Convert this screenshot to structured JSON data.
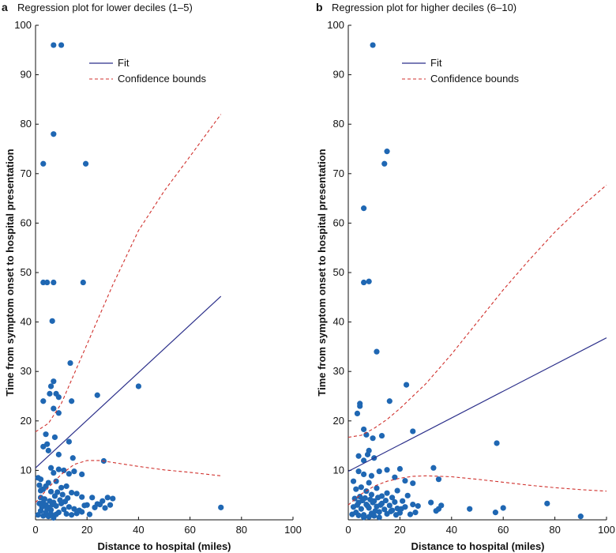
{
  "figure": {
    "colors": {
      "fit": "#2b2f8a",
      "bounds": "#d0312d",
      "points": "#1f67b3",
      "axis": "#111111"
    }
  },
  "chart_data": [
    {
      "panel_letter": "a",
      "title": "Regression plot for lower deciles (1–5)",
      "type": "scatter",
      "xlabel": "Distance to hospital (miles)",
      "ylabel": "Time from symptom onset to hospital presentation",
      "xlim": [
        0,
        100
      ],
      "ylim": [
        0,
        100
      ],
      "xticks": [
        0,
        20,
        40,
        60,
        80,
        100
      ],
      "yticks": [
        10,
        20,
        30,
        40,
        50,
        60,
        70,
        80,
        90,
        100
      ],
      "legend": {
        "position": "top-center",
        "entries": [
          "Fit",
          "Confidence bounds"
        ]
      },
      "fit": [
        [
          0,
          10.5
        ],
        [
          72,
          45.2
        ]
      ],
      "upper_bound": [
        [
          0,
          17.8
        ],
        [
          5,
          19.5
        ],
        [
          10,
          23.5
        ],
        [
          15,
          29.5
        ],
        [
          20,
          35.5
        ],
        [
          30,
          47.5
        ],
        [
          40,
          58.5
        ],
        [
          50,
          66.5
        ],
        [
          60,
          73.5
        ],
        [
          72,
          82
        ]
      ],
      "lower_bound": [
        [
          0,
          3.5
        ],
        [
          5,
          6.5
        ],
        [
          10,
          9.2
        ],
        [
          15,
          11.2
        ],
        [
          20,
          12
        ],
        [
          25,
          12
        ],
        [
          30,
          11.6
        ],
        [
          40,
          10.8
        ],
        [
          50,
          10.1
        ],
        [
          60,
          9.6
        ],
        [
          72,
          8.9
        ]
      ],
      "points": [
        [
          7,
          96
        ],
        [
          10,
          96
        ],
        [
          7,
          78
        ],
        [
          3,
          72
        ],
        [
          19.5,
          72
        ],
        [
          3,
          48
        ],
        [
          4.5,
          48
        ],
        [
          7,
          48
        ],
        [
          18.5,
          48
        ],
        [
          6.5,
          40.2
        ],
        [
          13.5,
          31.7
        ],
        [
          40,
          27
        ],
        [
          7,
          28
        ],
        [
          6,
          27
        ],
        [
          5.5,
          25.5
        ],
        [
          8,
          25.5
        ],
        [
          9,
          24.8
        ],
        [
          24,
          25.2
        ],
        [
          3,
          24
        ],
        [
          14,
          24
        ],
        [
          7,
          22.5
        ],
        [
          9,
          21.6
        ],
        [
          4,
          17.3
        ],
        [
          3,
          14.8
        ],
        [
          4.5,
          15.3
        ],
        [
          5,
          14
        ],
        [
          7.5,
          16.7
        ],
        [
          13,
          15.8
        ],
        [
          9,
          13.2
        ],
        [
          26.5,
          11.9
        ],
        [
          14.5,
          12.5
        ],
        [
          18,
          9.2
        ],
        [
          6,
          10.5
        ],
        [
          7,
          9.5
        ],
        [
          9,
          10.2
        ],
        [
          11,
          10
        ],
        [
          13,
          9.3
        ],
        [
          15,
          9.8
        ],
        [
          72,
          2.5
        ],
        [
          1,
          8.5
        ],
        [
          2,
          8.2
        ],
        [
          1.5,
          7
        ],
        [
          3,
          6.2
        ],
        [
          5,
          7.5
        ],
        [
          8,
          7.8
        ],
        [
          10,
          6.5
        ],
        [
          12,
          6.8
        ],
        [
          14,
          5.5
        ],
        [
          16,
          5.3
        ],
        [
          18,
          4.6
        ],
        [
          20,
          3
        ],
        [
          22,
          4.5
        ],
        [
          24,
          3.2
        ],
        [
          26,
          3.8
        ],
        [
          28,
          4.5
        ],
        [
          30,
          4.3
        ],
        [
          2,
          4.5
        ],
        [
          3,
          3.5
        ],
        [
          4,
          3
        ],
        [
          5,
          2.5
        ],
        [
          6,
          2
        ],
        [
          7,
          3.5
        ],
        [
          8,
          2.8
        ],
        [
          9,
          1.5
        ],
        [
          10,
          3.3
        ],
        [
          11,
          2.1
        ],
        [
          12,
          1.2
        ],
        [
          13,
          2.6
        ],
        [
          15,
          2.2
        ],
        [
          17,
          1.9
        ],
        [
          19,
          2.9
        ],
        [
          21,
          1.1
        ],
        [
          23,
          2.5
        ],
        [
          25,
          3.1
        ],
        [
          27,
          2.4
        ],
        [
          29,
          3
        ],
        [
          1,
          1
        ],
        [
          2,
          1.8
        ],
        [
          3,
          0.8
        ],
        [
          4,
          1.5
        ],
        [
          5,
          0.7
        ],
        [
          6,
          1.2
        ],
        [
          7,
          0.4
        ],
        [
          8,
          1.1
        ],
        [
          2.5,
          2.6
        ],
        [
          4.5,
          2.2
        ],
        [
          6.5,
          3.1
        ],
        [
          3.5,
          4.2
        ],
        [
          5.5,
          3.8
        ],
        [
          7.5,
          4.8
        ],
        [
          9.5,
          4
        ],
        [
          11.5,
          3.7
        ],
        [
          1.5,
          3.3
        ],
        [
          8.5,
          5.6
        ],
        [
          10.5,
          5.1
        ],
        [
          12.5,
          4.4
        ],
        [
          6,
          5.7
        ],
        [
          4,
          6.8
        ],
        [
          2,
          5.9
        ],
        [
          16,
          1.3
        ],
        [
          18,
          1.6
        ],
        [
          14,
          1
        ]
      ]
    },
    {
      "panel_letter": "b",
      "title": "Regression plot for higher deciles (6–10)",
      "type": "scatter",
      "xlabel": "Distance to hospital (miles)",
      "ylabel": "Time from symptom onset to hospital presentation",
      "xlim": [
        0,
        100
      ],
      "ylim": [
        0,
        100
      ],
      "xticks": [
        0,
        20,
        40,
        60,
        80,
        100
      ],
      "yticks": [
        10,
        20,
        30,
        40,
        50,
        60,
        70,
        80,
        90,
        100
      ],
      "legend": {
        "position": "top-center",
        "entries": [
          "Fit",
          "Confidence bounds"
        ]
      },
      "fit": [
        [
          0,
          9.8
        ],
        [
          100,
          36.8
        ]
      ],
      "upper_bound": [
        [
          0,
          16.7
        ],
        [
          5,
          17.1
        ],
        [
          10,
          18.5
        ],
        [
          15,
          20.3
        ],
        [
          20,
          22.5
        ],
        [
          30,
          27.5
        ],
        [
          40,
          33.5
        ],
        [
          50,
          40
        ],
        [
          60,
          46.5
        ],
        [
          70,
          52.5
        ],
        [
          80,
          58.2
        ],
        [
          90,
          63.2
        ],
        [
          100,
          67.7
        ]
      ],
      "lower_bound": [
        [
          0,
          3
        ],
        [
          5,
          5.2
        ],
        [
          10,
          6.8
        ],
        [
          15,
          7.8
        ],
        [
          20,
          8.4
        ],
        [
          25,
          8.8
        ],
        [
          30,
          8.9
        ],
        [
          40,
          8.7
        ],
        [
          50,
          8.2
        ],
        [
          60,
          7.6
        ],
        [
          70,
          7
        ],
        [
          80,
          6.5
        ],
        [
          90,
          6.1
        ],
        [
          100,
          5.8
        ]
      ],
      "points": [
        [
          9.5,
          96
        ],
        [
          15,
          74.5
        ],
        [
          14,
          72
        ],
        [
          6,
          63
        ],
        [
          6,
          48
        ],
        [
          8,
          48.2
        ],
        [
          11,
          34
        ],
        [
          22.5,
          27.3
        ],
        [
          16,
          24
        ],
        [
          4.5,
          23.5
        ],
        [
          4.5,
          23
        ],
        [
          3.5,
          21.5
        ],
        [
          25,
          17.9
        ],
        [
          6,
          18.3
        ],
        [
          7,
          17.2
        ],
        [
          13,
          17
        ],
        [
          57.5,
          15.5
        ],
        [
          9.5,
          16.5
        ],
        [
          8,
          14
        ],
        [
          10,
          12.5
        ],
        [
          4,
          12.9
        ],
        [
          6,
          12
        ],
        [
          7.5,
          13.2
        ],
        [
          33,
          10.5
        ],
        [
          35,
          8.2
        ],
        [
          20,
          10.3
        ],
        [
          9,
          8.9
        ],
        [
          12,
          9.8
        ],
        [
          15,
          10.1
        ],
        [
          18,
          8.6
        ],
        [
          22,
          7.9
        ],
        [
          25,
          7.4
        ],
        [
          4,
          9.8
        ],
        [
          6,
          9.2
        ],
        [
          8,
          7.5
        ],
        [
          2,
          7.8
        ],
        [
          3,
          6.2
        ],
        [
          5,
          6.6
        ],
        [
          7,
          5.8
        ],
        [
          9,
          5.1
        ],
        [
          11,
          6.4
        ],
        [
          13,
          4.8
        ],
        [
          15,
          5.4
        ],
        [
          17,
          4.5
        ],
        [
          19,
          5.9
        ],
        [
          21,
          3.8
        ],
        [
          23,
          4.9
        ],
        [
          25,
          3.1
        ],
        [
          27,
          2.8
        ],
        [
          32,
          3.5
        ],
        [
          35,
          2.2
        ],
        [
          34,
          1.8
        ],
        [
          36,
          2.9
        ],
        [
          47,
          2.2
        ],
        [
          57,
          1.5
        ],
        [
          60,
          2.4
        ],
        [
          77,
          3.3
        ],
        [
          90,
          0.7
        ],
        [
          24,
          1.1
        ],
        [
          26,
          1.5
        ],
        [
          2,
          2.6
        ],
        [
          3,
          1.5
        ],
        [
          4,
          3.5
        ],
        [
          5,
          2.2
        ],
        [
          6,
          1
        ],
        [
          7,
          3.1
        ],
        [
          8,
          2.4
        ],
        [
          9,
          1.3
        ],
        [
          10,
          3.8
        ],
        [
          11,
          2.7
        ],
        [
          12,
          1.6
        ],
        [
          13,
          3.3
        ],
        [
          14,
          2.1
        ],
        [
          15,
          1.2
        ],
        [
          16,
          2.9
        ],
        [
          17,
          1.9
        ],
        [
          18,
          3.6
        ],
        [
          19,
          2.3
        ],
        [
          20,
          1.4
        ],
        [
          22,
          2.6
        ],
        [
          1.5,
          1.1
        ],
        [
          2.5,
          4.3
        ],
        [
          3.5,
          3
        ],
        [
          4.5,
          4.7
        ],
        [
          5.5,
          3.9
        ],
        [
          6.5,
          4.4
        ],
        [
          7.5,
          2.8
        ],
        [
          8.5,
          4.1
        ],
        [
          9.5,
          3.5
        ],
        [
          10.5,
          1.8
        ],
        [
          11.5,
          4.5
        ],
        [
          12.5,
          3
        ],
        [
          14.5,
          3.9
        ],
        [
          16.5,
          1.7
        ],
        [
          18.5,
          1
        ],
        [
          20.5,
          2.2
        ],
        [
          6,
          0.5
        ],
        [
          8,
          0.6
        ],
        [
          10,
          0.8
        ],
        [
          4,
          0.9
        ],
        [
          12,
          0.5
        ]
      ]
    }
  ]
}
